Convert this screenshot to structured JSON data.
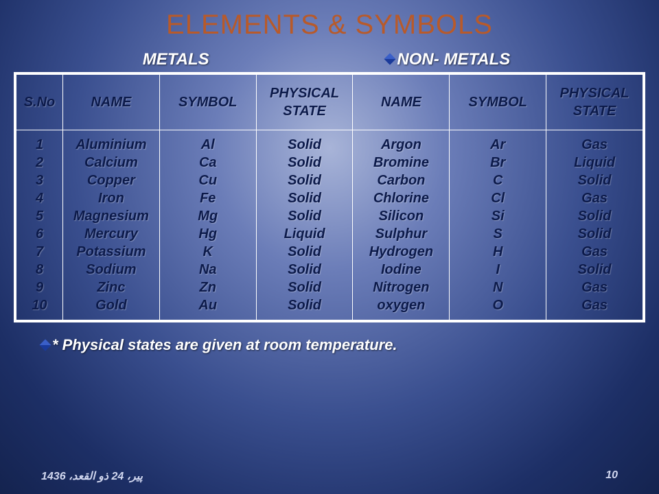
{
  "title": "ELEMENTS & SYMBOLS",
  "sections": {
    "metals": "METALS",
    "nonmetals": "NON- METALS"
  },
  "headers": {
    "sno": "S.No",
    "name1": "NAME",
    "symbol1": "SYMBOL",
    "state1": "PHYSICAL STATE",
    "name2": "NAME",
    "symbol2": "SYMBOL",
    "state2": "PHYSICAL STATE"
  },
  "sno": [
    "1",
    "2",
    "3",
    "4",
    "5",
    "6",
    "7",
    "8",
    "9",
    "10"
  ],
  "metal_name": [
    "Aluminium",
    "Calcium",
    "Copper",
    "Iron",
    "Magnesium",
    "Mercury",
    "Potassium",
    "Sodium",
    "Zinc",
    "Gold"
  ],
  "metal_sym": [
    "Al",
    "Ca",
    "Cu",
    "Fe",
    "Mg",
    "Hg",
    "K",
    "Na",
    "Zn",
    "Au"
  ],
  "metal_state": [
    "Solid",
    "Solid",
    "Solid",
    "Solid",
    "Solid",
    "Liquid",
    "Solid",
    "Solid",
    "Solid",
    "Solid"
  ],
  "non_name": [
    "Argon",
    "Bromine",
    "Carbon",
    "Chlorine",
    "Silicon",
    "Sulphur",
    "Hydrogen",
    "Iodine",
    "Nitrogen",
    "oxygen"
  ],
  "non_sym": [
    "Ar",
    "Br",
    "C",
    "Cl",
    "Si",
    "S",
    "H",
    "I",
    "N",
    "O"
  ],
  "non_state": [
    "Gas",
    "Liquid",
    "Solid",
    "Gas",
    "Solid",
    "Solid",
    "Gas",
    "Solid",
    "Gas",
    "Gas"
  ],
  "footnote": "* Physical states are given at room temperature.",
  "footer": {
    "date": "پیر، 24 ذو القعد، 1436",
    "page": "10"
  },
  "colors": {
    "title": "#b85a2a",
    "text_dark": "#0c1a4a",
    "text_light": "#ffffff",
    "border": "#ffffff",
    "bullet": "#1a3a9a"
  }
}
